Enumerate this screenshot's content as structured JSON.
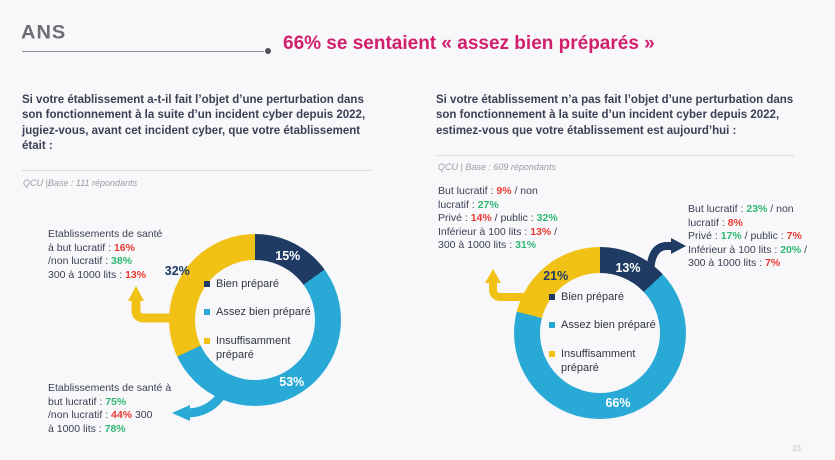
{
  "page": {
    "logo_text": "ANS",
    "title": "66% se sentaient « assez bien préparés »",
    "page_number": "33"
  },
  "colors": {
    "navy": "#1f3b63",
    "blue": "#29a9d6",
    "yellow": "#f2c116",
    "pink": "#d11e6d",
    "green": "#2fb873",
    "red": "#ea3a34",
    "text": "#3a4154",
    "muted": "#9b9ba3"
  },
  "legend": [
    {
      "label": "Bien préparé",
      "color": "#1f3b63"
    },
    {
      "label": "Assez bien préparé",
      "color": "#29a9d6"
    },
    {
      "label": "Insuffisamment préparé",
      "color": "#f2c116"
    }
  ],
  "left_panel": {
    "question": "Si votre établissement a-t-il fait l’objet d’une perturbation dans son fonctionnement à la suite d’un incident cyber depuis 2022, jugiez-vous, avant cet incident cyber, que votre établissement était :",
    "base_note": "QCU |Base : 111 répondants",
    "annotation_top": {
      "lines": [
        [
          {
            "t": "Etablissements de santé",
            "c": "text"
          }
        ],
        [
          {
            "t": "à but lucratif : ",
            "c": "text"
          },
          {
            "t": "16%",
            "c": "red"
          }
        ],
        [
          {
            "t": "/non lucratif : ",
            "c": "text"
          },
          {
            "t": "38%",
            "c": "green"
          }
        ],
        [
          {
            "t": "300 à 1000 lits : ",
            "c": "text"
          },
          {
            "t": "13%",
            "c": "red"
          }
        ]
      ]
    },
    "annotation_bottom": {
      "lines": [
        [
          {
            "t": "Etablissements de santé à",
            "c": "text"
          }
        ],
        [
          {
            "t": "but lucratif : ",
            "c": "text"
          },
          {
            "t": "75%",
            "c": "green"
          }
        ],
        [
          {
            "t": "/non lucratif : ",
            "c": "text"
          },
          {
            "t": "44%",
            "c": "red"
          },
          {
            "t": " 300",
            "c": "text"
          }
        ],
        [
          {
            "t": "à 1000 lits : ",
            "c": "text"
          },
          {
            "t": "78%",
            "c": "green"
          }
        ]
      ]
    }
  },
  "right_panel": {
    "question": "Si votre établissement n’a pas fait l’objet d’une perturbation dans son fonctionnement à la suite d’un incident cyber depuis 2022, estimez-vous que votre établissement est aujourd’hui :",
    "base_note": "QCU | Base : 609 répondants",
    "annotation_left": {
      "lines": [
        [
          {
            "t": "But lucratif : ",
            "c": "text"
          },
          {
            "t": "9%",
            "c": "red"
          },
          {
            "t": " / non",
            "c": "text"
          }
        ],
        [
          {
            "t": "lucratif : ",
            "c": "text"
          },
          {
            "t": "27%",
            "c": "green"
          }
        ],
        [
          {
            "t": "Privé : ",
            "c": "text"
          },
          {
            "t": "14%",
            "c": "red"
          },
          {
            "t": " / public : ",
            "c": "text"
          },
          {
            "t": "32%",
            "c": "green"
          }
        ],
        [
          {
            "t": "Inférieur à 100 lits : ",
            "c": "text"
          },
          {
            "t": "13%",
            "c": "red"
          },
          {
            "t": " /",
            "c": "text"
          }
        ],
        [
          {
            "t": "300 à 1000 lits : ",
            "c": "text"
          },
          {
            "t": "31%",
            "c": "green"
          }
        ]
      ]
    },
    "annotation_right": {
      "lines": [
        [
          {
            "t": "But lucratif : ",
            "c": "text"
          },
          {
            "t": "23%",
            "c": "green"
          },
          {
            "t": " / non",
            "c": "text"
          }
        ],
        [
          {
            "t": "lucratif : ",
            "c": "text"
          },
          {
            "t": "8%",
            "c": "red"
          }
        ],
        [
          {
            "t": "Privé : ",
            "c": "text"
          },
          {
            "t": "17%",
            "c": "green"
          },
          {
            "t": " / public : ",
            "c": "text"
          },
          {
            "t": "7%",
            "c": "red"
          }
        ],
        [
          {
            "t": "Inférieur à 100 lits : ",
            "c": "text"
          },
          {
            "t": "20%",
            "c": "green"
          },
          {
            "t": " /",
            "c": "text"
          }
        ],
        [
          {
            "t": "300 à 1000 lits : ",
            "c": "text"
          },
          {
            "t": "7%",
            "c": "red"
          }
        ]
      ]
    }
  },
  "chart_data": [
    {
      "type": "pie",
      "variant": "donut",
      "title": "Si votre établissement a-t-il fait l’objet d’une perturbation dans son fonctionnement à la suite d’un incident cyber depuis 2022, jugiez-vous, avant cet incident cyber, que votre établissement était :",
      "base": "111 répondants",
      "categories": [
        "Bien préparé",
        "Assez bien préparé",
        "Insuffisamment préparé"
      ],
      "values": [
        15,
        53,
        32
      ],
      "start_angle": 0,
      "direction": "clockwise",
      "legend_position": "center",
      "slices": [
        {
          "name": "Bien préparé",
          "value": 15,
          "label": "15%",
          "color": "#1f3b63",
          "label_color": "#ffffff",
          "label_r": 0.84
        },
        {
          "name": "Assez bien préparé",
          "value": 53,
          "label": "53%",
          "color": "#29a9d6",
          "label_color": "#ffffff",
          "label_r": 0.84
        },
        {
          "name": "Insuffisamment préparé",
          "value": 32,
          "label": "32%",
          "color": "#f2c116",
          "label_color": "#1f3b63",
          "label_r": 1.07
        }
      ]
    },
    {
      "type": "pie",
      "variant": "donut",
      "title": "Si votre établissement n’a pas fait l’objet d’une perturbation dans son fonctionnement à la suite d’un incident cyber depuis 2022, estimez-vous que votre établissement est aujourd’hui :",
      "base": "609 répondants",
      "categories": [
        "Bien préparé",
        "Assez bien préparé",
        "Insuffisamment préparé"
      ],
      "values": [
        13,
        66,
        21
      ],
      "start_angle": 0,
      "direction": "clockwise",
      "legend_position": "center",
      "slices": [
        {
          "name": "Bien préparé",
          "value": 13,
          "label": "13%",
          "color": "#1f3b63",
          "label_color": "#ffffff",
          "label_r": 0.82
        },
        {
          "name": "Assez bien préparé",
          "value": 66,
          "label": "66%",
          "color": "#29a9d6",
          "label_color": "#ffffff",
          "label_r": 0.84
        },
        {
          "name": "Insuffisamment préparé",
          "value": 21,
          "label": "21%",
          "color": "#f2c116",
          "label_color": "#1f3b63",
          "label_r": 0.84
        }
      ]
    }
  ]
}
